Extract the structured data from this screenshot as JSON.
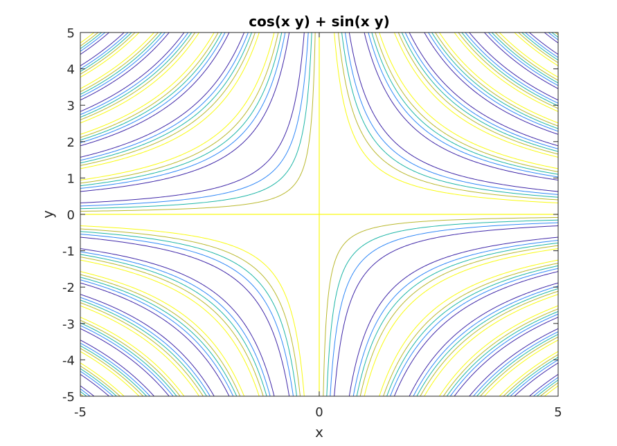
{
  "chart_data": {
    "type": "contour",
    "title": "cos(x y) + sin(x y)",
    "function": "cos(x y) + sin(x y)",
    "xlabel": "x",
    "ylabel": "y",
    "xlim": [
      -5,
      5
    ],
    "ylim": [
      -5,
      5
    ],
    "x_ticks": [
      -5,
      0,
      5
    ],
    "x_tick_labels": [
      "-5",
      "0",
      "5"
    ],
    "y_ticks": [
      -5,
      -4,
      -3,
      -2,
      -1,
      0,
      1,
      2,
      3,
      4,
      5
    ],
    "y_tick_labels": [
      "-5",
      "-4",
      "-3",
      "-2",
      "-1",
      "0",
      "1",
      "2",
      "3",
      "4",
      "5"
    ],
    "levels": [
      -1.0,
      -0.5,
      0.0,
      0.5,
      1.0
    ],
    "level_colors": [
      "#3e26a8",
      "#2e87f7",
      "#1cb5a6",
      "#b9b82d",
      "#f9fb0e"
    ],
    "grid": false,
    "colormap": "parula"
  }
}
